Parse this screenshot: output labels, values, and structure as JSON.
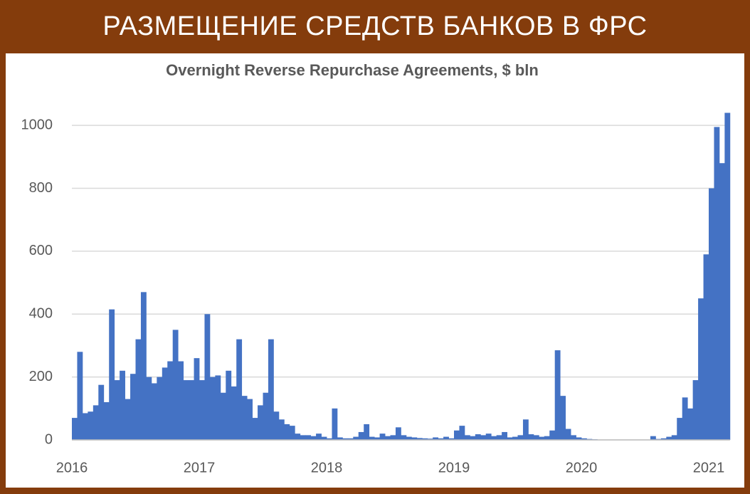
{
  "header": {
    "title": "РАЗМЕЩЕНИЕ СРЕДСТВ БАНКОВ В ФРС"
  },
  "chart_data": {
    "type": "bar",
    "title": "Overnight Reverse Repurchase Agreements, $ bln",
    "categories": [
      "2016",
      null,
      null,
      null,
      null,
      null,
      null,
      null,
      null,
      null,
      null,
      null,
      null,
      null,
      null,
      null,
      null,
      null,
      null,
      null,
      null,
      null,
      null,
      null,
      "2017",
      null,
      null,
      null,
      null,
      null,
      null,
      null,
      null,
      null,
      null,
      null,
      null,
      null,
      null,
      null,
      null,
      null,
      null,
      null,
      null,
      null,
      null,
      null,
      "2018",
      null,
      null,
      null,
      null,
      null,
      null,
      null,
      null,
      null,
      null,
      null,
      null,
      null,
      null,
      null,
      null,
      null,
      null,
      null,
      null,
      null,
      null,
      null,
      "2019",
      null,
      null,
      null,
      null,
      null,
      null,
      null,
      null,
      null,
      null,
      null,
      null,
      null,
      null,
      null,
      null,
      null,
      null,
      null,
      null,
      null,
      null,
      null,
      "2020",
      null,
      null,
      null,
      null,
      null,
      null,
      null,
      null,
      null,
      null,
      null,
      null,
      null,
      null,
      null,
      null,
      null,
      null,
      null,
      null,
      null,
      null,
      null,
      "2021",
      null,
      null,
      null
    ],
    "values": [
      70,
      280,
      85,
      90,
      110,
      175,
      120,
      415,
      190,
      220,
      130,
      210,
      320,
      470,
      200,
      180,
      200,
      230,
      250,
      350,
      250,
      190,
      190,
      260,
      190,
      400,
      200,
      205,
      150,
      220,
      170,
      320,
      140,
      130,
      70,
      110,
      150,
      320,
      90,
      65,
      50,
      45,
      20,
      15,
      15,
      12,
      20,
      10,
      5,
      100,
      8,
      5,
      5,
      10,
      25,
      50,
      10,
      8,
      20,
      12,
      15,
      40,
      15,
      10,
      8,
      6,
      5,
      4,
      8,
      5,
      10,
      5,
      30,
      45,
      15,
      12,
      18,
      15,
      20,
      12,
      15,
      25,
      8,
      10,
      15,
      65,
      18,
      15,
      10,
      12,
      30,
      285,
      140,
      35,
      15,
      8,
      5,
      3,
      2,
      1,
      1,
      1,
      1,
      1,
      1,
      1,
      1,
      1,
      1,
      12,
      3,
      5,
      10,
      15,
      70,
      135,
      100,
      190,
      450,
      590,
      800,
      995,
      880,
      1040
    ],
    "color": "#4472c4",
    "ylim": [
      0,
      1100
    ],
    "yticks": [
      0,
      200,
      400,
      600,
      800,
      1000
    ],
    "grid": true
  }
}
